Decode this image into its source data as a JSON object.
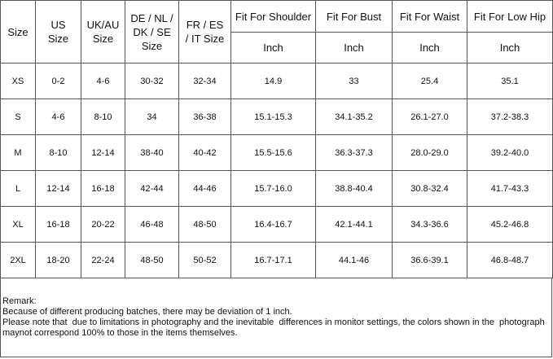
{
  "table": {
    "header": [
      {
        "lines": [
          "Size"
        ]
      },
      {
        "lines": [
          "US",
          "Size"
        ]
      },
      {
        "lines": [
          "UK/AU",
          "Size"
        ]
      },
      {
        "lines": [
          "DE / NL /",
          "DK / SE",
          "Size"
        ]
      },
      {
        "lines": [
          "FR / ES",
          "/ IT Size"
        ]
      },
      {
        "lines": [
          "Fit For Shoulder"
        ]
      },
      {
        "lines": [
          "Fit For Bust"
        ]
      },
      {
        "lines": [
          "Fit For Waist"
        ]
      },
      {
        "lines": [
          "Fit For Low Hip"
        ]
      }
    ],
    "units": [
      "Inch",
      "Inch",
      "Inch",
      "Inch"
    ],
    "rows": [
      [
        "XS",
        "0-2",
        "4-6",
        "30-32",
        "32-34",
        "14.9",
        "33",
        "25.4",
        "35.1"
      ],
      [
        "S",
        "4-6",
        "8-10",
        "34",
        "36-38",
        "15.1-15.3",
        "34.1-35.2",
        "26.1-27.0",
        "37.2-38.3"
      ],
      [
        "M",
        "8-10",
        "12-14",
        "38-40",
        "40-42",
        "15.5-15.6",
        "36.3-37.3",
        "28.0-29.0",
        "39.2-40.0"
      ],
      [
        "L",
        "12-14",
        "16-18",
        "42-44",
        "44-46",
        "15.7-16.0",
        "38.8-40.4",
        "30.8-32.4",
        "41.7-43.3"
      ],
      [
        "XL",
        "16-18",
        "20-22",
        "46-48",
        "48-50",
        "16.4-16.7",
        "42.1-44.1",
        "34.3-36.6",
        "45.2-46.8"
      ],
      [
        "2XL",
        "18-20",
        "22-24",
        "48-50",
        "50-52",
        "16.7-17.1",
        "44.1-46",
        "36.6-39.1",
        "46.8-48.7"
      ]
    ]
  },
  "remark": {
    "title": "Remark:",
    "lines": [
      "Because of different producing batches, there may be deviation of 1 inch.",
      "Please note that  due to limitations in photography and the inevitable  differences in monitor settings, the colors shown in the  photograph maynot correspond 100% to those in the items themselves."
    ]
  }
}
